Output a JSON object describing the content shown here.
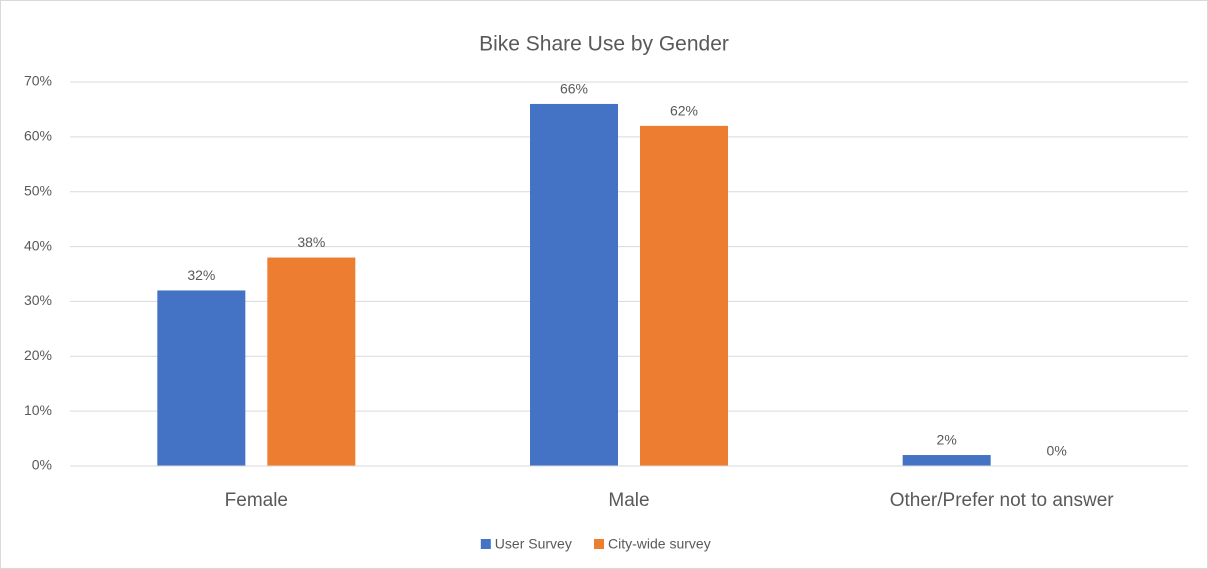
{
  "chart_data": {
    "type": "bar",
    "title": "Bike Share Use by Gender",
    "categories": [
      "Female",
      "Male",
      "Other/Prefer not to answer"
    ],
    "series": [
      {
        "name": "User Survey",
        "color": "#4472c4",
        "values": [
          32,
          66,
          2
        ],
        "value_labels": [
          "32%",
          "66%",
          "2%"
        ]
      },
      {
        "name": "City-wide survey",
        "color": "#ed7d31",
        "values": [
          38,
          62,
          0
        ],
        "value_labels": [
          "38%",
          "62%",
          "0%"
        ]
      }
    ],
    "ylim": [
      0,
      70
    ],
    "yticks": [
      {
        "value": 0,
        "label": "0%"
      },
      {
        "value": 10,
        "label": "10%"
      },
      {
        "value": 20,
        "label": "20%"
      },
      {
        "value": 30,
        "label": "30%"
      },
      {
        "value": 40,
        "label": "40%"
      },
      {
        "value": 50,
        "label": "50%"
      },
      {
        "value": 60,
        "label": "60%"
      },
      {
        "value": 70,
        "label": "70%"
      }
    ],
    "grid": true,
    "legend": "bottom"
  }
}
